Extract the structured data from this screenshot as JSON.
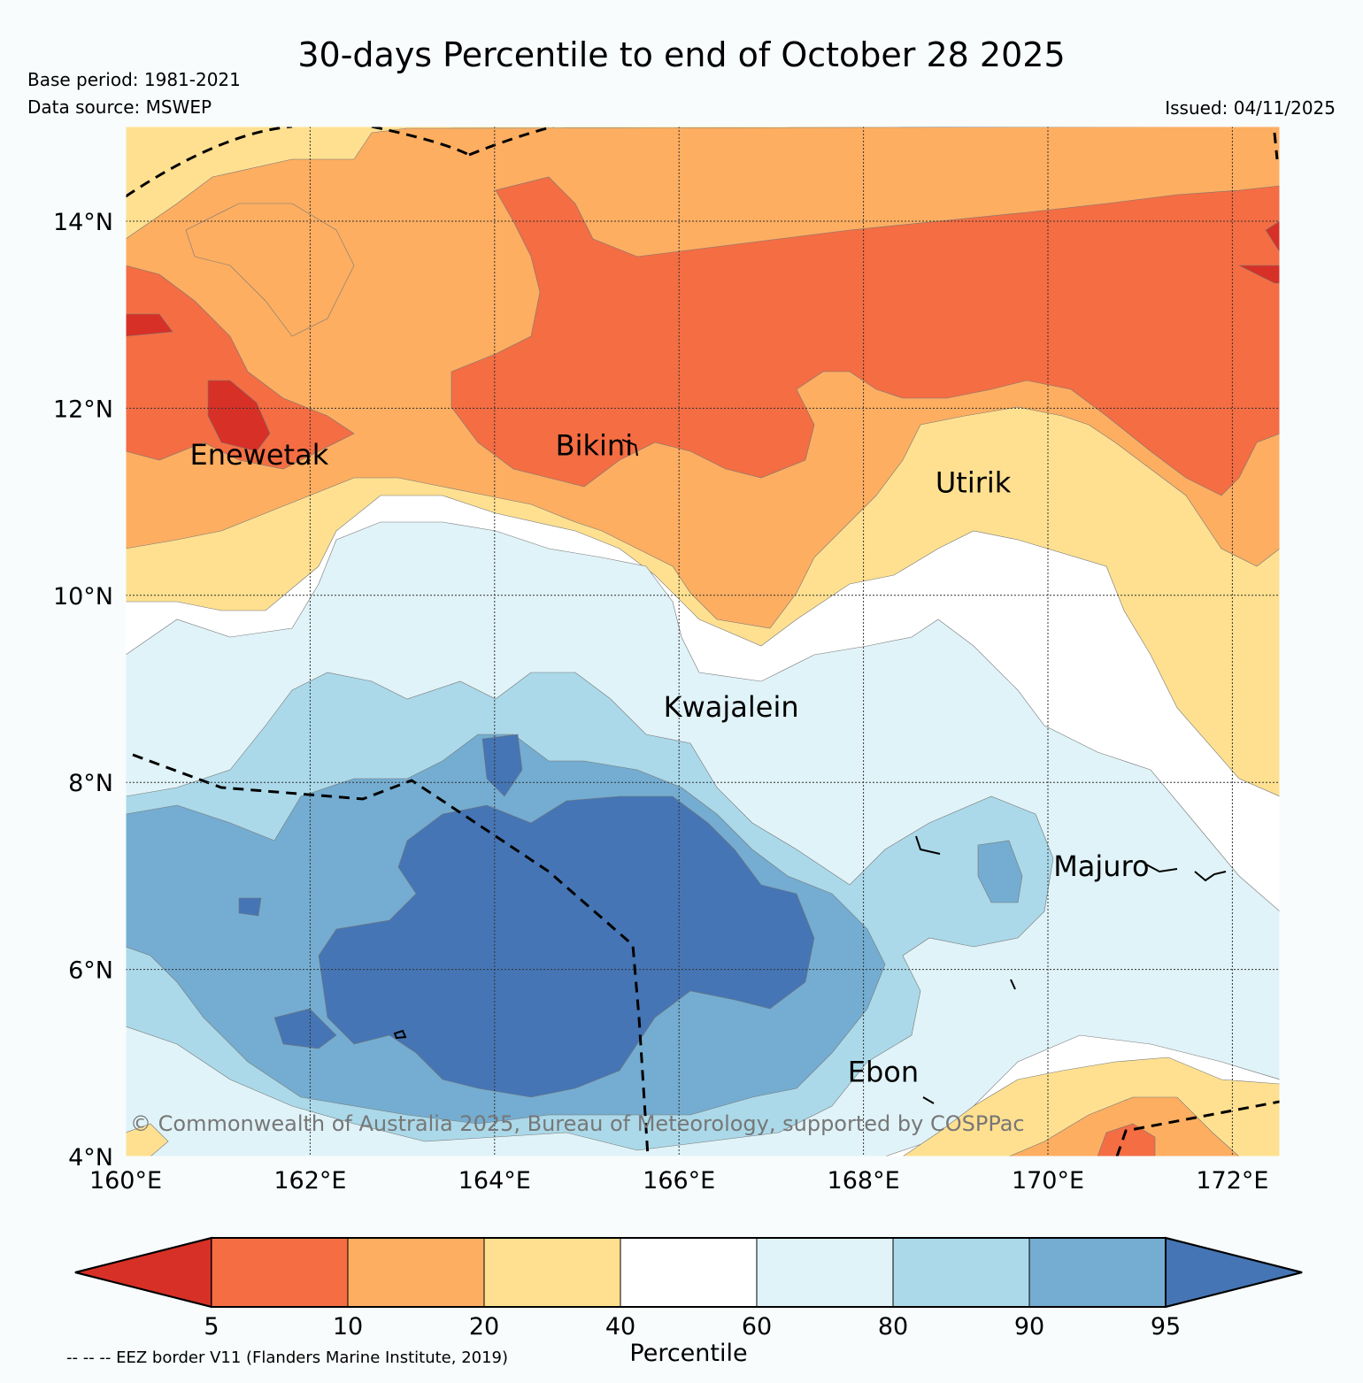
{
  "header": {
    "title": "30-days Percentile to end of October 28 2025",
    "base_period": "Base period: 1981-2021",
    "data_source": "Data source: MSWEP",
    "issued": "Issued: 04/11/2025"
  },
  "axes": {
    "lon_labels": [
      "160°E",
      "162°E",
      "164°E",
      "166°E",
      "168°E",
      "170°E",
      "172°E"
    ],
    "lat_labels": [
      "14°N",
      "12°N",
      "10°N",
      "8°N",
      "6°N",
      "4°N"
    ],
    "lon_values": [
      160,
      162,
      164,
      166,
      168,
      170,
      172
    ],
    "lat_values": [
      14,
      12,
      10,
      8,
      6,
      4
    ],
    "lon_range": [
      160,
      172.5
    ],
    "lat_range": [
      4,
      15
    ]
  },
  "places": [
    {
      "name": "Enewetak",
      "lon": 162.2,
      "lat": 11.4
    },
    {
      "name": "Bikini",
      "lon": 165.5,
      "lat": 11.5
    },
    {
      "name": "Utirik",
      "lon": 169.6,
      "lat": 11.1
    },
    {
      "name": "Kwajalein",
      "lon": 167.3,
      "lat": 8.7
    },
    {
      "name": "Majuro",
      "lon": 171.1,
      "lat": 7.0
    },
    {
      "name": "Ebon",
      "lon": 168.6,
      "lat": 4.8
    }
  ],
  "copyright": "© Commonwealth of Australia 2025, Bureau of Meteorology, supported by COSPPac",
  "colorbar": {
    "title": "Percentile",
    "ticks": [
      "5",
      "10",
      "20",
      "40",
      "60",
      "80",
      "90",
      "95"
    ],
    "colors": {
      "below_5": "#d73027",
      "p5_10": "#f46d43",
      "p10_20": "#fdae61",
      "p20_40": "#fee090",
      "p40_60": "#ffffff",
      "p60_80": "#e0f3f8",
      "p80_90": "#abd9e9",
      "p90_95": "#74add1",
      "above_95": "#4575b4"
    }
  },
  "eez_note": "-- -- -- EEZ border V11 (Flanders Marine Institute, 2019)"
}
